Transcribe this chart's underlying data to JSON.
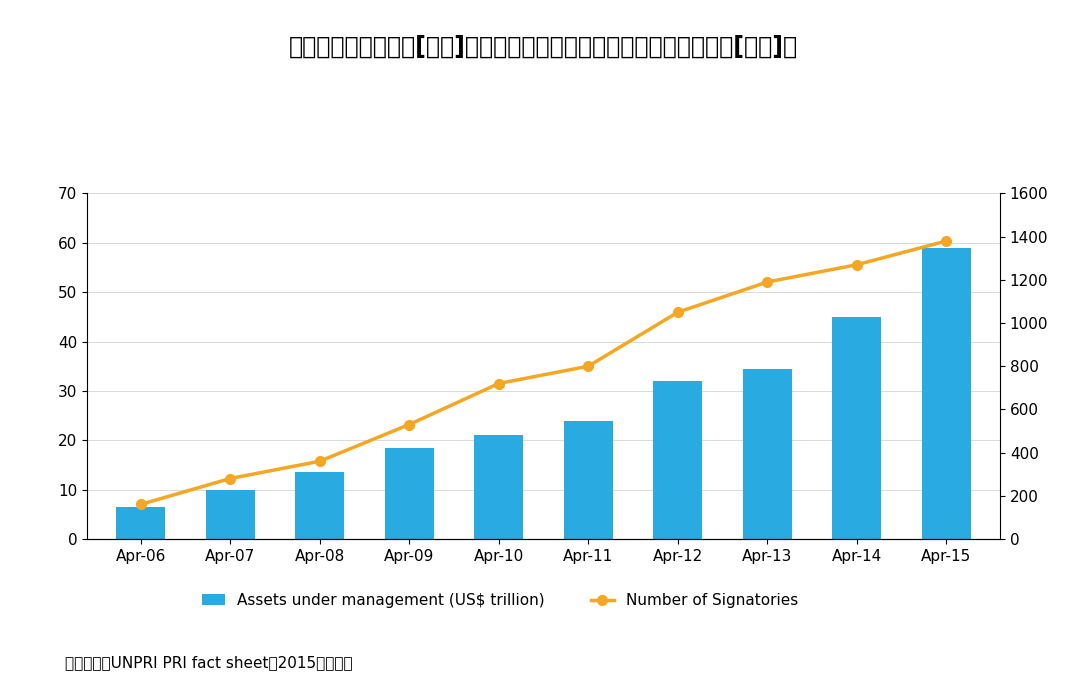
{
  "categories": [
    "Apr-06",
    "Apr-07",
    "Apr-08",
    "Apr-09",
    "Apr-10",
    "Apr-11",
    "Apr-12",
    "Apr-13",
    "Apr-14",
    "Apr-15"
  ],
  "assets": [
    6.5,
    10.0,
    13.5,
    18.5,
    21.0,
    24.0,
    32.0,
    34.5,
    45.0,
    59.0
  ],
  "signatories": [
    160,
    280,
    360,
    530,
    720,
    800,
    1050,
    1190,
    1270,
    1380
  ],
  "bar_color": "#29ABE2",
  "line_color": "#F5A623",
  "bar_label": "Assets under management (US$ trillion)",
  "line_label": "Number of Signatories",
  "title": "図表２：　署名者数[右軸]とその運用資産残高　（金額単位：兆ドル[左軸]）",
  "footnote": "（資料）　UNPRI PRI fact sheet（2015）　より",
  "left_ylim": [
    0,
    70
  ],
  "right_ylim": [
    0,
    1600
  ],
  "left_yticks": [
    0,
    10,
    20,
    30,
    40,
    50,
    60,
    70
  ],
  "right_yticks": [
    0,
    200,
    400,
    600,
    800,
    1000,
    1200,
    1400,
    1600
  ],
  "title_fontsize": 17,
  "tick_fontsize": 11,
  "legend_fontsize": 11,
  "footnote_fontsize": 11,
  "background_color": "#ffffff"
}
